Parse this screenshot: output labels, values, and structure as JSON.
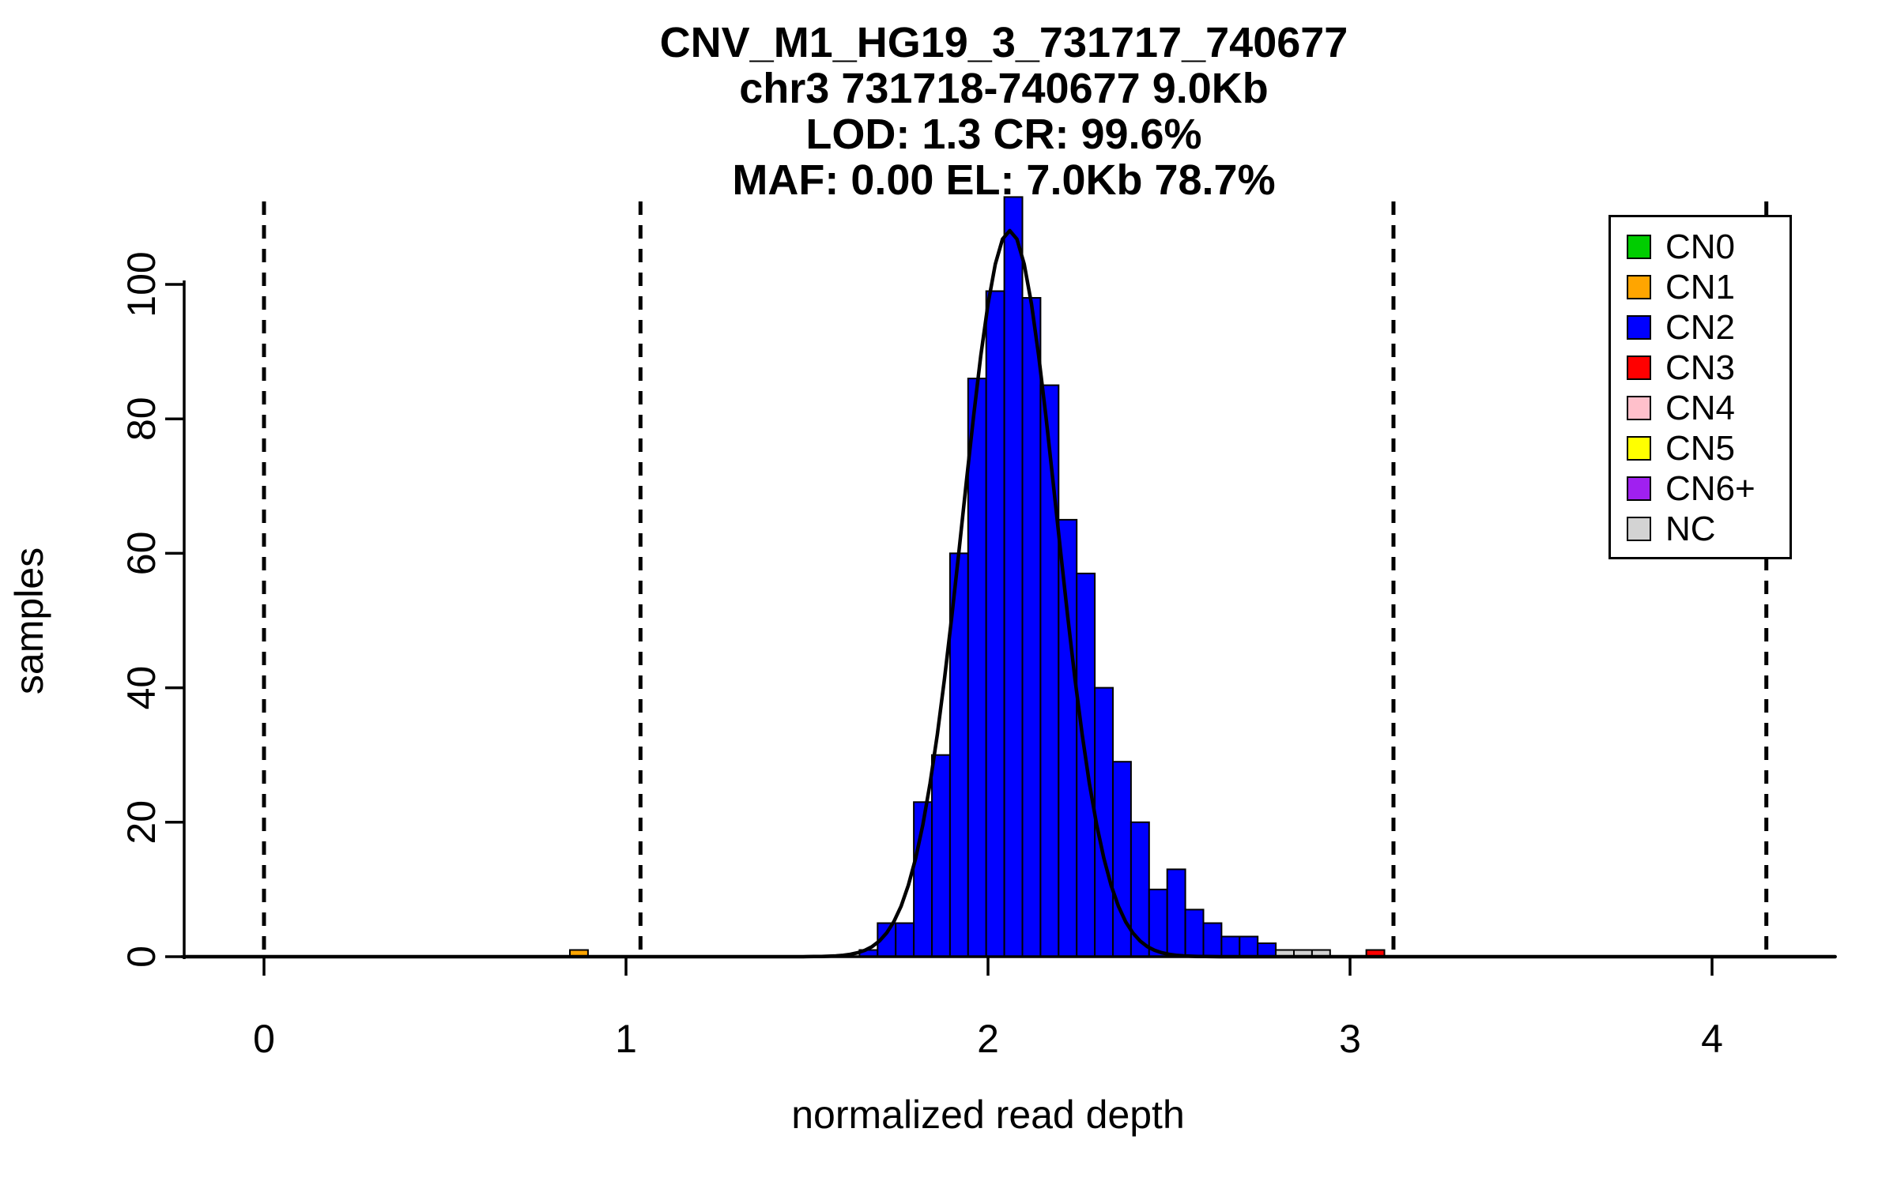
{
  "chart_data": {
    "type": "bar",
    "subtype": "histogram-with-density-curve",
    "title_lines": [
      "CNV_M1_HG19_3_731717_740677",
      "chr3 731718-740677 9.0Kb",
      "LOD: 1.3 CR: 99.6%",
      "MAF: 0.00 EL: 7.0Kb 78.7%"
    ],
    "xlabel": "normalized read depth",
    "ylabel": "samples",
    "x_ticks": [
      0,
      1,
      2,
      3,
      4
    ],
    "y_ticks": [
      0,
      20,
      40,
      60,
      80,
      100
    ],
    "xlim": [
      -0.25,
      4.35
    ],
    "ylim": [
      0,
      113
    ],
    "grid": false,
    "legend_position": "top-right",
    "dashed_lines_x": [
      0.0,
      1.04,
      2.08,
      3.12,
      4.15
    ],
    "bin_width": 0.05,
    "bars": [
      {
        "x": 0.845,
        "count": 1,
        "cn": "CN1"
      },
      {
        "x": 1.645,
        "count": 1,
        "cn": "CN2"
      },
      {
        "x": 1.695,
        "count": 5,
        "cn": "CN2"
      },
      {
        "x": 1.745,
        "count": 5,
        "cn": "CN2"
      },
      {
        "x": 1.795,
        "count": 23,
        "cn": "CN2"
      },
      {
        "x": 1.845,
        "count": 30,
        "cn": "CN2"
      },
      {
        "x": 1.895,
        "count": 60,
        "cn": "CN2"
      },
      {
        "x": 1.945,
        "count": 86,
        "cn": "CN2"
      },
      {
        "x": 1.995,
        "count": 99,
        "cn": "CN2"
      },
      {
        "x": 2.045,
        "count": 113,
        "cn": "CN2"
      },
      {
        "x": 2.095,
        "count": 98,
        "cn": "CN2"
      },
      {
        "x": 2.145,
        "count": 85,
        "cn": "CN2"
      },
      {
        "x": 2.195,
        "count": 65,
        "cn": "CN2"
      },
      {
        "x": 2.245,
        "count": 57,
        "cn": "CN2"
      },
      {
        "x": 2.295,
        "count": 40,
        "cn": "CN2"
      },
      {
        "x": 2.345,
        "count": 29,
        "cn": "CN2"
      },
      {
        "x": 2.395,
        "count": 20,
        "cn": "CN2"
      },
      {
        "x": 2.445,
        "count": 10,
        "cn": "CN2"
      },
      {
        "x": 2.495,
        "count": 13,
        "cn": "CN2"
      },
      {
        "x": 2.545,
        "count": 7,
        "cn": "CN2"
      },
      {
        "x": 2.595,
        "count": 5,
        "cn": "CN2"
      },
      {
        "x": 2.645,
        "count": 3,
        "cn": "CN2"
      },
      {
        "x": 2.695,
        "count": 3,
        "cn": "CN2"
      },
      {
        "x": 2.745,
        "count": 2,
        "cn": "CN2"
      },
      {
        "x": 2.795,
        "count": 1,
        "cn": "NC"
      },
      {
        "x": 2.845,
        "count": 1,
        "cn": "NC"
      },
      {
        "x": 2.895,
        "count": 1,
        "cn": "NC"
      },
      {
        "x": 3.045,
        "count": 1,
        "cn": "CN3"
      }
    ],
    "curve": {
      "shape": "gaussian",
      "mean": 2.06,
      "sd": 0.13,
      "amplitude": 108,
      "color": "#000000"
    },
    "legend": [
      {
        "label": "CN0",
        "color": "#00CD00"
      },
      {
        "label": "CN1",
        "color": "#FFA500"
      },
      {
        "label": "CN2",
        "color": "#0000FF"
      },
      {
        "label": "CN3",
        "color": "#FF0000"
      },
      {
        "label": "CN4",
        "color": "#FFC0CB"
      },
      {
        "label": "CN5",
        "color": "#FFFF00"
      },
      {
        "label": "CN6+",
        "color": "#A020F0"
      },
      {
        "label": "NC",
        "color": "#D3D3D3"
      }
    ],
    "colors": {
      "axis": "#000000",
      "bar_border": "#000000",
      "dashed_line": "#000000"
    }
  }
}
